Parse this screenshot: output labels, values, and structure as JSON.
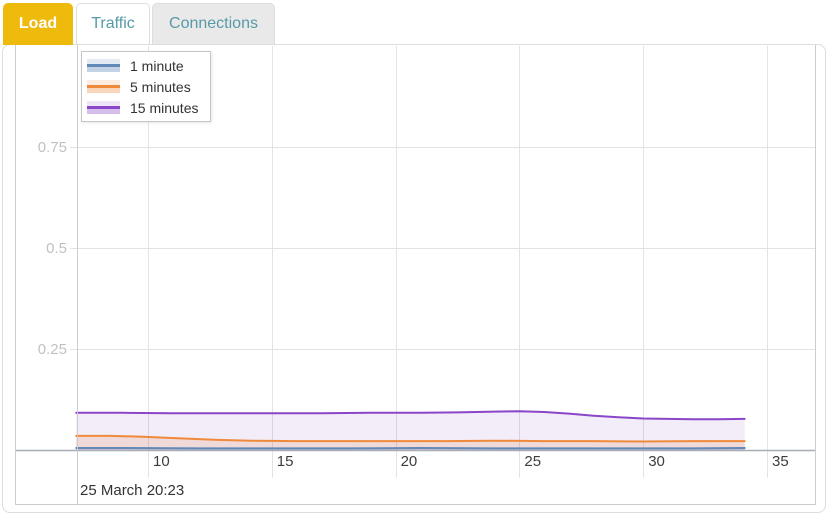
{
  "tabs": [
    {
      "label": "Load",
      "active": true
    },
    {
      "label": "Traffic",
      "active": false
    },
    {
      "label": "Connections",
      "active": false
    }
  ],
  "colors": {
    "active_tab_bg": "#eebb0d",
    "active_tab_text": "#ffffff",
    "inactive_tab_text": "#579aa8",
    "inactive_tab_bg": "#e9e9e9",
    "panel_border": "#dddddd",
    "frame_border": "#cccccc",
    "gridline": "#e3e3e3",
    "axis_line": "#a7adb8",
    "x_label": "#3d3d3d",
    "y_label": "#c1c1c4",
    "date_label": "#333333"
  },
  "chart_data": {
    "type": "area",
    "title": "Load",
    "xlabel": "",
    "ylabel": "",
    "x_domain": [
      7.1,
      37.0
    ],
    "y_domain": [
      0,
      1
    ],
    "x_ticks": [
      "10",
      "15",
      "20",
      "25",
      "30",
      "35"
    ],
    "x_tick_values": [
      10,
      15,
      20,
      25,
      30,
      35
    ],
    "y_ticks": [
      "0.25",
      "0.5",
      "0.75"
    ],
    "y_tick_values": [
      0.25,
      0.5,
      0.75
    ],
    "grid": true,
    "legend_position": "top-left",
    "date_label": "25 March 20:23",
    "series": [
      {
        "name": "1 minute",
        "color": "#6289b8",
        "fill": "rgba(98,137,184,0.28)",
        "swatch_top": "rgba(98,137,184,0.18)",
        "swatch_bottom": "rgba(98,137,184,0.38)",
        "points": [
          [
            7.1,
            0.005
          ],
          [
            9,
            0.005
          ],
          [
            12,
            0.004
          ],
          [
            15,
            0.004
          ],
          [
            18,
            0.004
          ],
          [
            21,
            0.005
          ],
          [
            24,
            0.004
          ],
          [
            27,
            0.004
          ],
          [
            30,
            0.004
          ],
          [
            32,
            0.004
          ],
          [
            34.1,
            0.005
          ]
        ]
      },
      {
        "name": "5 minutes",
        "color": "#ef8a3b",
        "fill": "rgba(239,138,59,0.18)",
        "swatch_top": "rgba(239,138,59,0.16)",
        "swatch_bottom": "rgba(239,138,59,0.35)",
        "points": [
          [
            7.1,
            0.035
          ],
          [
            8.5,
            0.035
          ],
          [
            9.8,
            0.033
          ],
          [
            11.2,
            0.029
          ],
          [
            12.8,
            0.025
          ],
          [
            14.2,
            0.023
          ],
          [
            16,
            0.022
          ],
          [
            18,
            0.022
          ],
          [
            20,
            0.022
          ],
          [
            22,
            0.022
          ],
          [
            24,
            0.023
          ],
          [
            26,
            0.022
          ],
          [
            28,
            0.022
          ],
          [
            30,
            0.021
          ],
          [
            32,
            0.022
          ],
          [
            34.1,
            0.022
          ]
        ]
      },
      {
        "name": "15 minutes",
        "color": "#8a46c8",
        "fill": "rgba(138,70,200,0.10)",
        "swatch_top": "rgba(138,70,200,0.14)",
        "swatch_bottom": "rgba(138,70,200,0.35)",
        "points": [
          [
            7.1,
            0.092
          ],
          [
            9,
            0.092
          ],
          [
            11,
            0.091
          ],
          [
            13,
            0.091
          ],
          [
            15,
            0.091
          ],
          [
            17,
            0.091
          ],
          [
            19,
            0.092
          ],
          [
            21,
            0.092
          ],
          [
            22.5,
            0.093
          ],
          [
            24,
            0.095
          ],
          [
            25,
            0.096
          ],
          [
            26,
            0.094
          ],
          [
            27,
            0.09
          ],
          [
            28,
            0.085
          ],
          [
            29,
            0.081
          ],
          [
            30,
            0.078
          ],
          [
            31,
            0.077
          ],
          [
            32,
            0.076
          ],
          [
            33,
            0.076
          ],
          [
            34.1,
            0.077
          ]
        ]
      }
    ]
  }
}
